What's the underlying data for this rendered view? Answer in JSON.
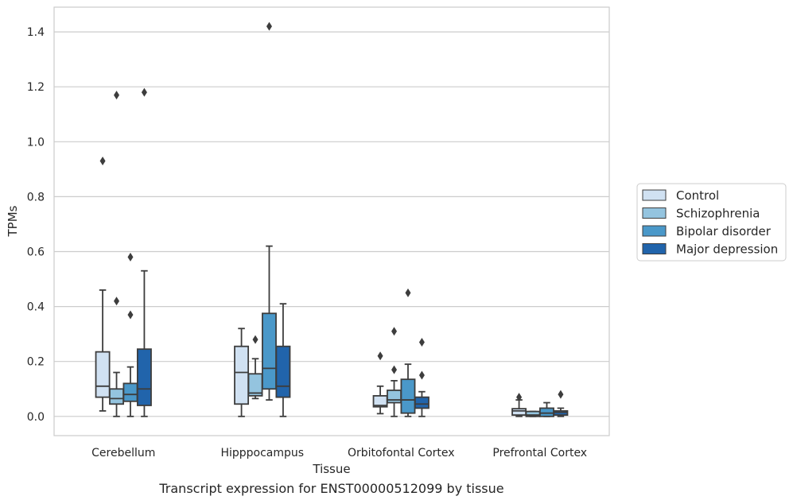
{
  "caption": "Transcript expression for ENST00000512099 by tissue",
  "chart_data": {
    "type": "box",
    "xlabel": "Tissue",
    "ylabel": "TPMs",
    "ylim": [
      -0.07,
      1.49
    ],
    "yticks": [
      0.0,
      0.2,
      0.4,
      0.6,
      0.8,
      1.0,
      1.2,
      1.4
    ],
    "ytick_labels": [
      "0.0",
      "0.2",
      "0.4",
      "0.6",
      "0.8",
      "1.0",
      "1.2",
      "1.4"
    ],
    "grid": "horizontal",
    "legend_position": "right",
    "categories": [
      "Cerebellum",
      "Hipppocampus",
      "Orbitofontal Cortex",
      "Prefrontal Cortex"
    ],
    "series": [
      {
        "name": "Control",
        "color": "#d0e1f2",
        "boxes": [
          {
            "q1": 0.07,
            "median": 0.11,
            "q3": 0.235,
            "whisker_low": 0.02,
            "whisker_high": 0.46,
            "outliers": [
              0.93
            ]
          },
          {
            "q1": 0.045,
            "median": 0.16,
            "q3": 0.255,
            "whisker_low": 0.0,
            "whisker_high": 0.32,
            "outliers": []
          },
          {
            "q1": 0.035,
            "median": 0.04,
            "q3": 0.075,
            "whisker_low": 0.01,
            "whisker_high": 0.11,
            "outliers": [
              0.22
            ]
          },
          {
            "q1": 0.005,
            "median": 0.02,
            "q3": 0.028,
            "whisker_low": 0.0,
            "whisker_high": 0.06,
            "outliers": [
              0.07
            ]
          }
        ]
      },
      {
        "name": "Schizophrenia",
        "color": "#94c4df",
        "boxes": [
          {
            "q1": 0.045,
            "median": 0.065,
            "q3": 0.1,
            "whisker_low": 0.0,
            "whisker_high": 0.16,
            "outliers": [
              0.42,
              1.17
            ]
          },
          {
            "q1": 0.075,
            "median": 0.085,
            "q3": 0.155,
            "whisker_low": 0.065,
            "whisker_high": 0.21,
            "outliers": [
              0.28
            ]
          },
          {
            "q1": 0.05,
            "median": 0.06,
            "q3": 0.095,
            "whisker_low": 0.0,
            "whisker_high": 0.13,
            "outliers": [
              0.17,
              0.31
            ]
          },
          {
            "q1": 0.0,
            "median": 0.005,
            "q3": 0.018,
            "whisker_low": 0.0,
            "whisker_high": 0.018,
            "outliers": []
          }
        ]
      },
      {
        "name": "Bipolar disorder",
        "color": "#4a98c9",
        "boxes": [
          {
            "q1": 0.055,
            "median": 0.08,
            "q3": 0.12,
            "whisker_low": 0.0,
            "whisker_high": 0.18,
            "outliers": [
              0.37,
              0.58
            ]
          },
          {
            "q1": 0.1,
            "median": 0.175,
            "q3": 0.375,
            "whisker_low": 0.06,
            "whisker_high": 0.62,
            "outliers": [
              1.42
            ]
          },
          {
            "q1": 0.012,
            "median": 0.06,
            "q3": 0.135,
            "whisker_low": 0.0,
            "whisker_high": 0.19,
            "outliers": [
              0.45
            ]
          },
          {
            "q1": 0.0,
            "median": 0.012,
            "q3": 0.03,
            "whisker_low": 0.0,
            "whisker_high": 0.05,
            "outliers": []
          }
        ]
      },
      {
        "name": "Major depression",
        "color": "#2164ab",
        "boxes": [
          {
            "q1": 0.04,
            "median": 0.1,
            "q3": 0.245,
            "whisker_low": 0.0,
            "whisker_high": 0.53,
            "outliers": [
              1.18
            ]
          },
          {
            "q1": 0.07,
            "median": 0.11,
            "q3": 0.255,
            "whisker_low": 0.0,
            "whisker_high": 0.41,
            "outliers": []
          },
          {
            "q1": 0.03,
            "median": 0.045,
            "q3": 0.07,
            "whisker_low": 0.0,
            "whisker_high": 0.09,
            "outliers": [
              0.15,
              0.27
            ]
          },
          {
            "q1": 0.005,
            "median": 0.015,
            "q3": 0.02,
            "whisker_low": 0.0,
            "whisker_high": 0.03,
            "outliers": [
              0.08
            ]
          }
        ]
      }
    ]
  }
}
